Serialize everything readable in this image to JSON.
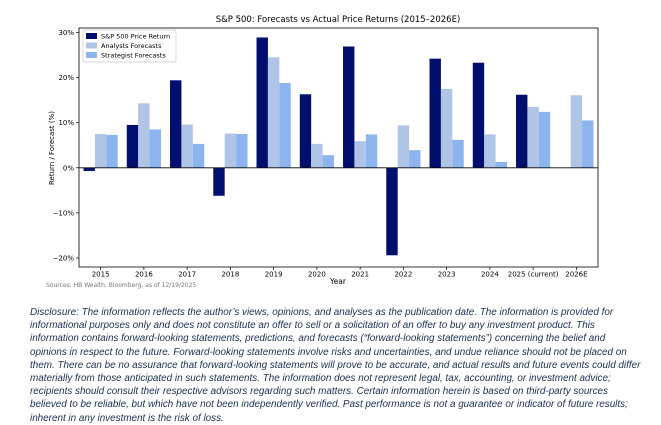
{
  "chart_data": {
    "type": "bar",
    "title": "S&P 500: Forecasts vs Actual Price Returns (2015–2026E)",
    "xlabel": "Year",
    "ylabel": "Return / Forecast (%)",
    "categories": [
      "2015",
      "2016",
      "2017",
      "2018",
      "2019",
      "2020",
      "2021",
      "2022",
      "2023",
      "2024",
      "2025 (current)",
      "2026E"
    ],
    "yticks": [
      -20,
      -10,
      0,
      10,
      20,
      30
    ],
    "ytick_labels": [
      "−20%",
      "−10%",
      "0%",
      "10%",
      "20%",
      "30%"
    ],
    "ylim": [
      -22,
      31
    ],
    "legend_position": "top-left",
    "grid": false,
    "series": [
      {
        "name": "S&P 500 Price Return",
        "color": "#000f6e",
        "values": [
          -0.7,
          9.5,
          19.4,
          -6.2,
          28.9,
          16.3,
          26.9,
          -19.4,
          24.2,
          23.3,
          16.2,
          null
        ]
      },
      {
        "name": "Analysts Forecasts",
        "color": "#b0c4e8",
        "values": [
          7.5,
          14.3,
          9.6,
          7.6,
          24.5,
          5.3,
          5.9,
          9.4,
          17.5,
          7.4,
          13.5,
          16.1
        ]
      },
      {
        "name": "Strategist Forecasts",
        "color": "#8cb4ee",
        "values": [
          7.3,
          8.5,
          5.3,
          7.5,
          18.8,
          2.8,
          7.4,
          3.9,
          6.2,
          1.3,
          12.4,
          10.5
        ]
      }
    ]
  },
  "source_note": "Sources: HB Wealth, Bloomberg, as of 12/19/2025",
  "disclaimer": "Disclosure: The information reflects the author’s views, opinions, and analyses as the publication date. The information is provided for informational purposes only and does not constitute an offer to sell or a solicitation of an offer to buy any investment product. This information contains forward-looking statements, predictions, and forecasts (“forward-looking statements”) concerning the belief and opinions in respect to the future. Forward-looking statements involve risks and uncertainties, and undue reliance should not be placed on them. There can be no assurance that forward-looking statements will prove to be accurate, and actual results and future events could differ materially from those anticipated in such statements. The information does not represent legal, tax, accounting, or investment advice; recipients should consult their respective advisors regarding such matters. Certain information herein is based on third-party sources believed to be reliable, but which have not been independently verified. Past performance is not a guarantee or indicator of future results; inherent in any investment is the risk of loss."
}
